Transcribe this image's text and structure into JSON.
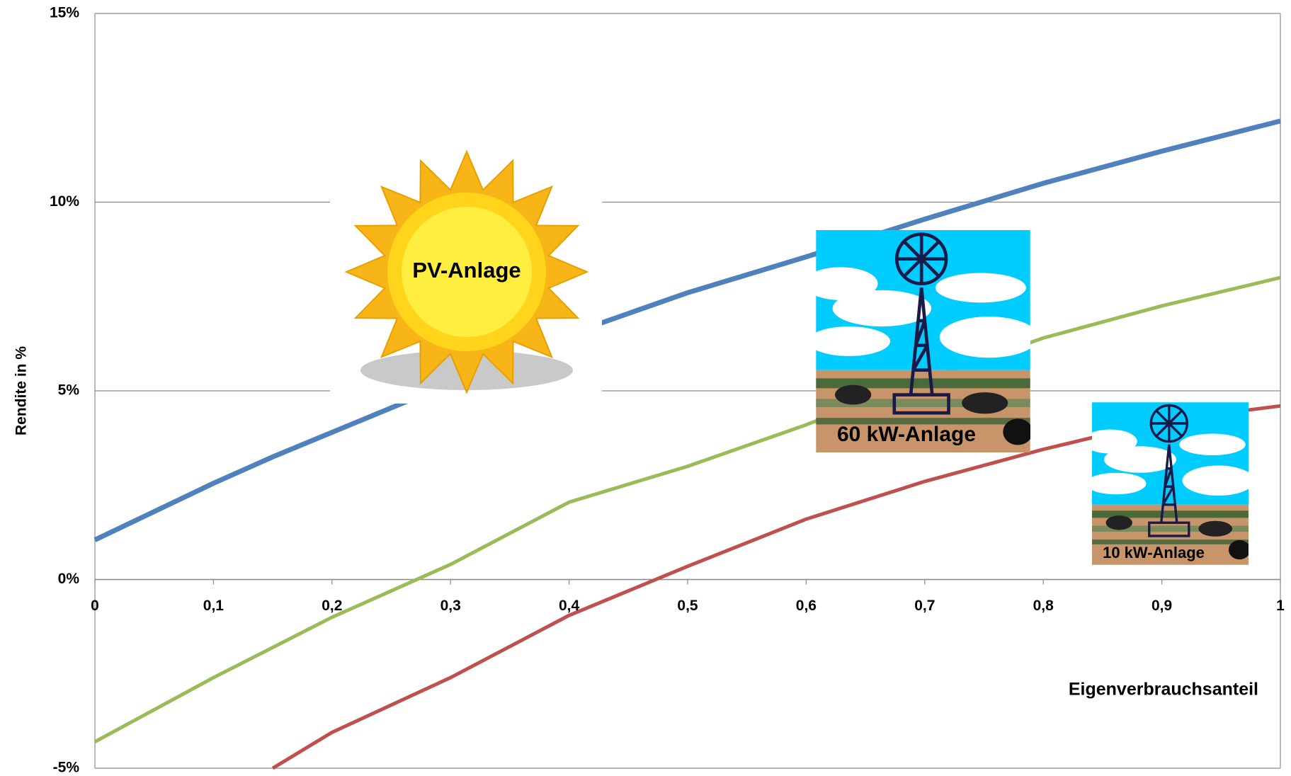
{
  "chart_data": {
    "type": "line",
    "y_label": "Rendite in %",
    "x_label": "Eigenverbrauchsanteil",
    "x": [
      0,
      0.1,
      0.15,
      0.2,
      0.3,
      0.4,
      0.5,
      0.6,
      0.7,
      0.8,
      0.9,
      1
    ],
    "series": [
      {
        "name": "PV-Anlage",
        "color": "#4f81bd",
        "values": [
          1.05,
          2.55,
          3.25,
          3.9,
          5.2,
          6.5,
          7.6,
          8.55,
          9.55,
          10.5,
          11.35,
          12.15
        ]
      },
      {
        "name": "60 kW-Anlage",
        "color": "#9bbb59",
        "values": [
          -4.3,
          -2.6,
          -1.8,
          -1.0,
          0.4,
          2.05,
          3.0,
          4.1,
          5.3,
          6.4,
          7.25,
          8.0
        ]
      },
      {
        "name": "10 kW-Anlage",
        "color": "#c0504d",
        "values": [
          null,
          null,
          -5,
          -4.05,
          -2.6,
          -0.95,
          0.35,
          1.6,
          2.6,
          3.45,
          4.2,
          4.6
        ]
      }
    ],
    "xlim": [
      0,
      1
    ],
    "xticks": [
      0,
      {
        "value": 0.1,
        "label": "0,1"
      },
      {
        "value": 0.2,
        "label": "0,2"
      },
      {
        "value": 0.3,
        "label": "0,3"
      },
      {
        "value": 0.4,
        "label": "0,4"
      },
      {
        "value": 0.5,
        "label": "0,5"
      },
      {
        "value": 0.6,
        "label": "0,6"
      },
      {
        "value": 0.7,
        "label": "0,7"
      },
      {
        "value": 0.8,
        "label": "0,8"
      },
      {
        "value": 0.9,
        "label": "0,9"
      },
      1
    ],
    "ylim": [
      -5,
      15
    ],
    "yticks": [
      {
        "value": -5,
        "label": "-5%"
      },
      {
        "value": 0,
        "label": "0%"
      },
      {
        "value": 5,
        "label": "5%"
      },
      {
        "value": 10,
        "label": "10%"
      },
      {
        "value": 15,
        "label": "15%"
      }
    ],
    "grid": true
  }
}
